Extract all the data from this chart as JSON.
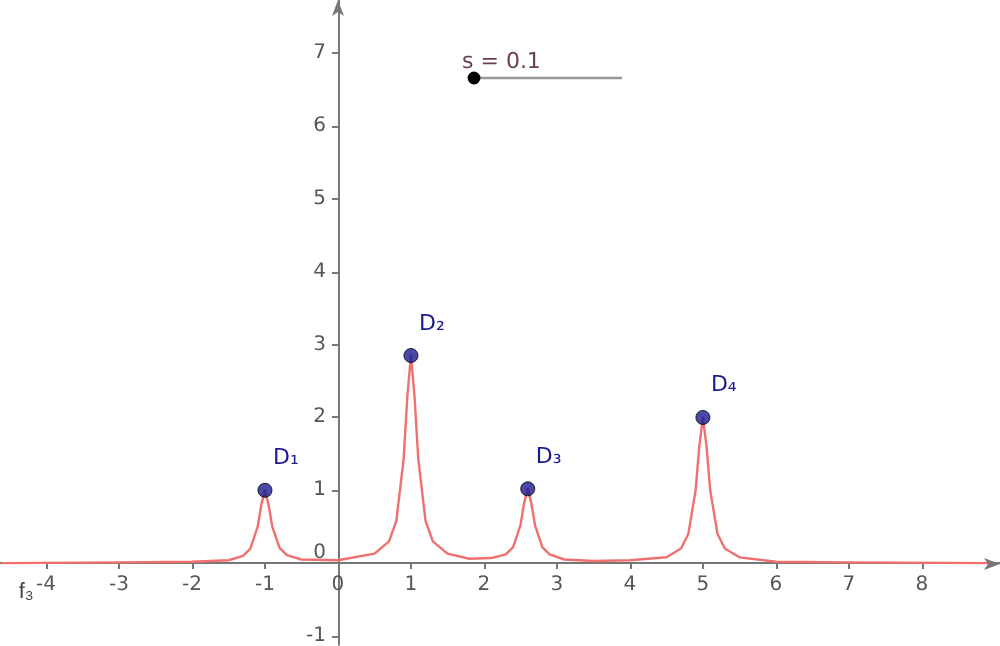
{
  "chart_data": {
    "type": "line",
    "xlim": [
      -4.63,
      9.07
    ],
    "ylim": [
      -1.12,
      7.73
    ],
    "xticks": [
      -4,
      -3,
      -2,
      -1,
      0,
      1,
      2,
      3,
      4,
      5,
      6,
      7,
      8
    ],
    "yticks": [
      -1,
      0,
      1,
      2,
      3,
      4,
      5,
      6,
      7
    ],
    "series": [
      {
        "name": "f₃",
        "type": "line",
        "marker": "none",
        "color": "#f07070",
        "x": [
          -4.6,
          -3,
          -2,
          -1.5,
          -1.3,
          -1.2,
          -1.1,
          -1.05,
          -1,
          -0.95,
          -0.9,
          -0.8,
          -0.7,
          -0.5,
          0,
          0.5,
          0.7,
          0.8,
          0.9,
          0.95,
          1,
          1.05,
          1.1,
          1.2,
          1.3,
          1.5,
          1.8,
          2.1,
          2.3,
          2.4,
          2.5,
          2.55,
          2.6,
          2.65,
          2.7,
          2.8,
          2.9,
          3.1,
          3.5,
          4,
          4.5,
          4.7,
          4.8,
          4.9,
          4.95,
          5,
          5.05,
          5.1,
          5.2,
          5.3,
          5.5,
          6,
          7,
          9
        ],
        "values": [
          0,
          0.01,
          0.02,
          0.04,
          0.1,
          0.2,
          0.5,
          0.8,
          1,
          0.8,
          0.5,
          0.21,
          0.11,
          0.05,
          0.04,
          0.13,
          0.3,
          0.58,
          1.43,
          2.28,
          2.85,
          2.28,
          1.43,
          0.58,
          0.3,
          0.13,
          0.06,
          0.07,
          0.12,
          0.22,
          0.52,
          0.82,
          1.02,
          0.82,
          0.52,
          0.22,
          0.12,
          0.05,
          0.03,
          0.04,
          0.08,
          0.2,
          0.4,
          1,
          1.6,
          2,
          1.6,
          1,
          0.4,
          0.2,
          0.08,
          0.02,
          0.01,
          0
        ]
      },
      {
        "type": "scatter",
        "marker": "circle",
        "color": "#1a1a90",
        "x": [
          -1,
          1,
          2.6,
          5
        ],
        "values": [
          1,
          2.85,
          1.02,
          2
        ]
      }
    ],
    "annotations": [
      {
        "text": "D₁",
        "x": -1,
        "y": 1
      },
      {
        "text": "D₂",
        "x": 1,
        "y": 2.85
      },
      {
        "text": "D₃",
        "x": 2.6,
        "y": 1.02
      },
      {
        "text": "D₄",
        "x": 5,
        "y": 2
      },
      "s = 0.1"
    ]
  }
}
